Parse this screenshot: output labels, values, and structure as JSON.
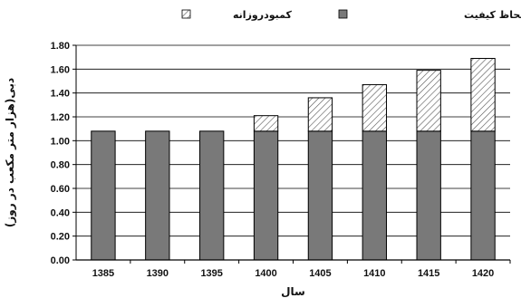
{
  "chart_data": {
    "type": "bar",
    "stacked": true,
    "title": "",
    "xlabel": "سال",
    "ylabel": "دبی(هزار متر مکعب در روز)",
    "categories": [
      "1385",
      "1390",
      "1395",
      "1400",
      "1405",
      "1410",
      "1415",
      "1420"
    ],
    "series": [
      {
        "name": "تولید روزانه بدون لحاظ کیفیت",
        "values": [
          1.08,
          1.08,
          1.08,
          1.08,
          1.08,
          1.08,
          1.08,
          1.08
        ],
        "fill": "dark-banded"
      },
      {
        "name": "کمبودروزانه",
        "values": [
          0,
          0,
          0,
          0.13,
          0.28,
          0.39,
          0.51,
          0.61
        ],
        "fill": "hatched"
      }
    ],
    "ylim": [
      0,
      1.8
    ],
    "yticks": [
      "0.00",
      "0.20",
      "0.40",
      "0.60",
      "0.80",
      "1.00",
      "1.20",
      "1.40",
      "1.60",
      "1.80"
    ],
    "grid": true,
    "legend_position": "top"
  }
}
